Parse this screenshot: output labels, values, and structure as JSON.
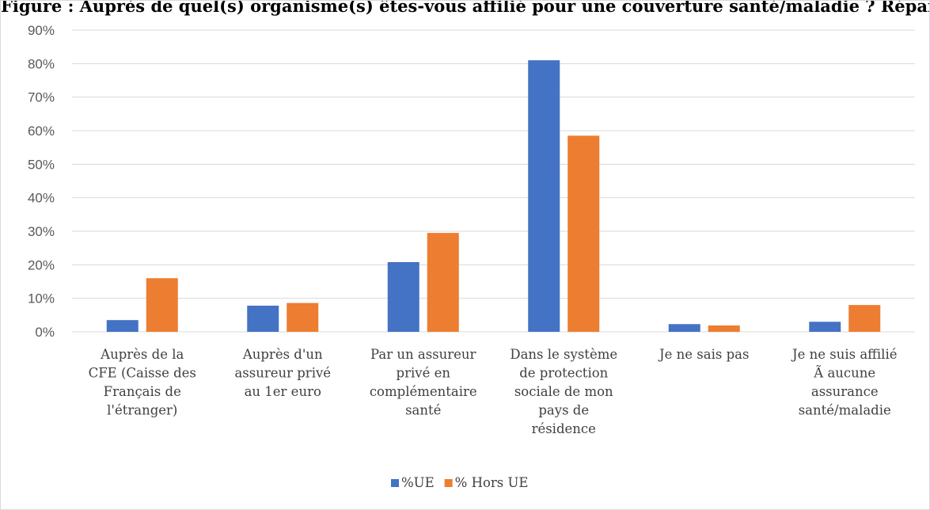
{
  "header": {
    "title": "Figure : Auprès de quel(s) organisme(s) êtes-vous affilié pour une couverture santé/maladie ? Répartition par zone"
  },
  "chart_data": {
    "type": "bar",
    "title": "",
    "xlabel": "",
    "ylabel": "",
    "ylim": [
      0,
      90
    ],
    "ytick_step": 10,
    "ytick_suffix": "%",
    "grid": true,
    "legend_position": "bottom",
    "categories": [
      [
        "Auprès de la",
        "CFE (Caisse des",
        "Français de",
        "l'étranger)"
      ],
      [
        "Auprès d'un",
        "assureur privé",
        "au 1er euro"
      ],
      [
        "Par un assureur",
        "privé en",
        "complémentaire",
        "santé"
      ],
      [
        "Dans le système",
        "de protection",
        "sociale de mon",
        "pays de",
        "résidence"
      ],
      [
        "Je ne sais pas"
      ],
      [
        "Je ne suis affilié",
        "Ã  aucune",
        "assurance",
        "santé/maladie"
      ]
    ],
    "series": [
      {
        "name": "%UE",
        "color": "#4472C4",
        "values": [
          3.5,
          7.8,
          20.8,
          81.0,
          2.3,
          3.0
        ]
      },
      {
        "name": "% Hors UE",
        "color": "#ED7D31",
        "values": [
          16.0,
          8.6,
          29.5,
          58.5,
          1.9,
          8.0
        ]
      }
    ]
  }
}
